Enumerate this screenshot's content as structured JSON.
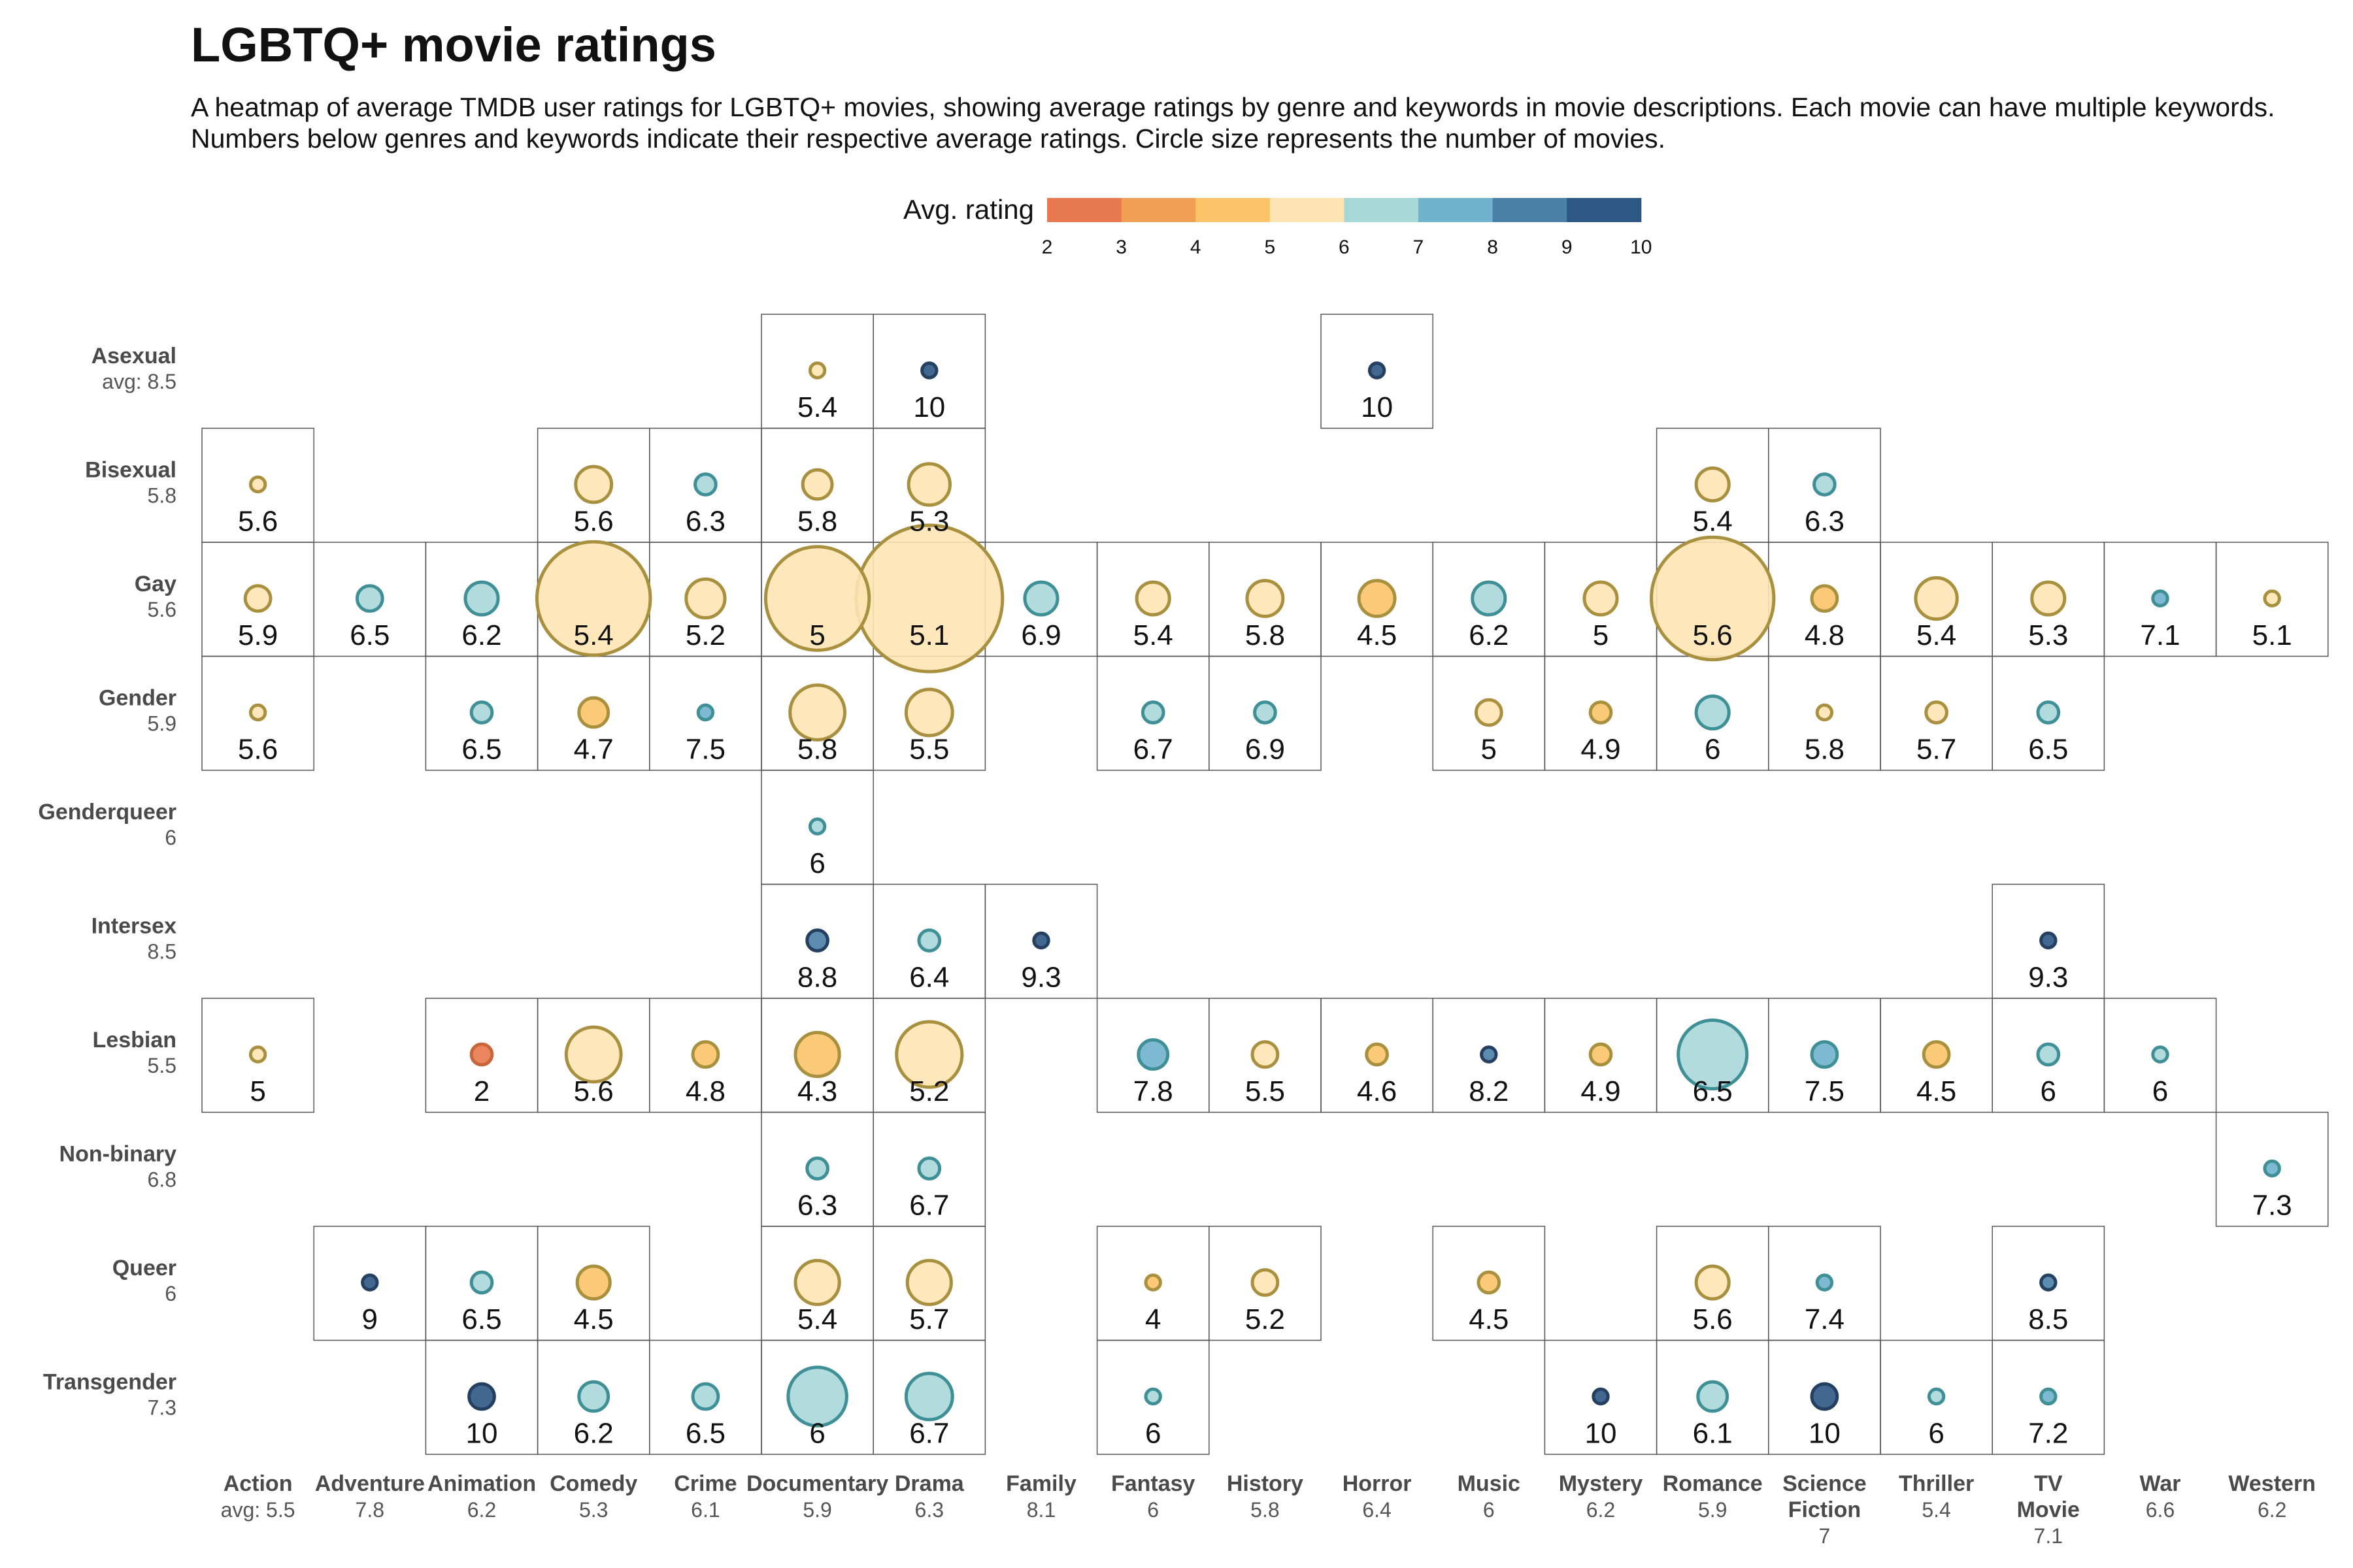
{
  "chart_data": {
    "type": "heatmap",
    "title": "LGBTQ+ movie ratings",
    "subtitle": "A heatmap of average TMDB user ratings for LGBTQ+ movies, showing average ratings by genre and keywords in movie descriptions. Each movie can have multiple keywords. Numbers below genres and keywords indicate their respective average ratings. Circle size represents the number of movies.",
    "legend": {
      "title": "Avg. rating",
      "ticks": [
        "2",
        "3",
        "4",
        "5",
        "6",
        "7",
        "8",
        "9",
        "10"
      ],
      "colors": [
        "#e8784e",
        "#f29f56",
        "#fbc469",
        "#fde4b4",
        "#a8d7d8",
        "#6fb3cc",
        "#4a80a6",
        "#2d5784"
      ],
      "placement": "top-center"
    },
    "genres": [
      {
        "name": "Action",
        "avg": "avg: 5.5"
      },
      {
        "name": "Adventure",
        "avg": "7.8"
      },
      {
        "name": "Animation",
        "avg": "6.2"
      },
      {
        "name": "Comedy",
        "avg": "5.3"
      },
      {
        "name": "Crime",
        "avg": "6.1"
      },
      {
        "name": "Documentary",
        "avg": "5.9"
      },
      {
        "name": "Drama",
        "avg": "6.3"
      },
      {
        "name": "Family",
        "avg": "8.1"
      },
      {
        "name": "Fantasy",
        "avg": "6"
      },
      {
        "name": "History",
        "avg": "5.8"
      },
      {
        "name": "Horror",
        "avg": "6.4"
      },
      {
        "name": "Music",
        "avg": "6"
      },
      {
        "name": "Mystery",
        "avg": "6.2"
      },
      {
        "name": "Romance",
        "avg": "5.9"
      },
      {
        "name": "Science Fiction",
        "avg": "7"
      },
      {
        "name": "Thriller",
        "avg": "5.4"
      },
      {
        "name": "TV Movie",
        "avg": "7.1"
      },
      {
        "name": "War",
        "avg": "6.6"
      },
      {
        "name": "Western",
        "avg": "6.2"
      }
    ],
    "keywords": [
      {
        "name": "Asexual",
        "avg": "avg: 8.5"
      },
      {
        "name": "Bisexual",
        "avg": "5.8"
      },
      {
        "name": "Gay",
        "avg": "5.6"
      },
      {
        "name": "Gender",
        "avg": "5.9"
      },
      {
        "name": "Genderqueer",
        "avg": "6"
      },
      {
        "name": "Intersex",
        "avg": "8.5"
      },
      {
        "name": "Lesbian",
        "avg": "5.5"
      },
      {
        "name": "Non-binary",
        "avg": "6.8"
      },
      {
        "name": "Queer",
        "avg": "6"
      },
      {
        "name": "Transgender",
        "avg": "7.3"
      }
    ],
    "cells": [
      {
        "keyword": "Asexual",
        "genre": "Documentary",
        "rating": "5.4",
        "count": 1
      },
      {
        "keyword": "Asexual",
        "genre": "Drama",
        "rating": "10",
        "count": 1
      },
      {
        "keyword": "Asexual",
        "genre": "Horror",
        "rating": "10",
        "count": 1
      },
      {
        "keyword": "Bisexual",
        "genre": "Action",
        "rating": "5.6",
        "count": 1
      },
      {
        "keyword": "Bisexual",
        "genre": "Comedy",
        "rating": "5.6",
        "count": 6
      },
      {
        "keyword": "Bisexual",
        "genre": "Crime",
        "rating": "6.3",
        "count": 2
      },
      {
        "keyword": "Bisexual",
        "genre": "Documentary",
        "rating": "5.8",
        "count": 4
      },
      {
        "keyword": "Bisexual",
        "genre": "Drama",
        "rating": "5.3",
        "count": 8
      },
      {
        "keyword": "Bisexual",
        "genre": "Romance",
        "rating": "5.4",
        "count": 5
      },
      {
        "keyword": "Bisexual",
        "genre": "Science Fiction",
        "rating": "6.3",
        "count": 2
      },
      {
        "keyword": "Gay",
        "genre": "Action",
        "rating": "5.9",
        "count": 3
      },
      {
        "keyword": "Gay",
        "genre": "Adventure",
        "rating": "6.5",
        "count": 3
      },
      {
        "keyword": "Gay",
        "genre": "Animation",
        "rating": "6.2",
        "count": 5
      },
      {
        "keyword": "Gay",
        "genre": "Comedy",
        "rating": "5.4",
        "count": 60
      },
      {
        "keyword": "Gay",
        "genre": "Crime",
        "rating": "5.2",
        "count": 7
      },
      {
        "keyword": "Gay",
        "genre": "Documentary",
        "rating": "5",
        "count": 50
      },
      {
        "keyword": "Gay",
        "genre": "Drama",
        "rating": "5.1",
        "count": 100
      },
      {
        "keyword": "Gay",
        "genre": "Family",
        "rating": "6.9",
        "count": 5
      },
      {
        "keyword": "Gay",
        "genre": "Fantasy",
        "rating": "5.4",
        "count": 5
      },
      {
        "keyword": "Gay",
        "genre": "History",
        "rating": "5.8",
        "count": 6
      },
      {
        "keyword": "Gay",
        "genre": "Horror",
        "rating": "4.5",
        "count": 6
      },
      {
        "keyword": "Gay",
        "genre": "Music",
        "rating": "6.2",
        "count": 5
      },
      {
        "keyword": "Gay",
        "genre": "Mystery",
        "rating": "5",
        "count": 5
      },
      {
        "keyword": "Gay",
        "genre": "Romance",
        "rating": "5.6",
        "count": 70
      },
      {
        "keyword": "Gay",
        "genre": "Science Fiction",
        "rating": "4.8",
        "count": 3
      },
      {
        "keyword": "Gay",
        "genre": "Thriller",
        "rating": "5.4",
        "count": 8
      },
      {
        "keyword": "Gay",
        "genre": "TV Movie",
        "rating": "5.3",
        "count": 5
      },
      {
        "keyword": "Gay",
        "genre": "War",
        "rating": "7.1",
        "count": 1
      },
      {
        "keyword": "Gay",
        "genre": "Western",
        "rating": "5.1",
        "count": 1
      },
      {
        "keyword": "Gender",
        "genre": "Action",
        "rating": "5.6",
        "count": 1
      },
      {
        "keyword": "Gender",
        "genre": "Animation",
        "rating": "6.5",
        "count": 2
      },
      {
        "keyword": "Gender",
        "genre": "Comedy",
        "rating": "4.7",
        "count": 4
      },
      {
        "keyword": "Gender",
        "genre": "Crime",
        "rating": "7.5",
        "count": 1
      },
      {
        "keyword": "Gender",
        "genre": "Documentary",
        "rating": "5.8",
        "count": 14
      },
      {
        "keyword": "Gender",
        "genre": "Drama",
        "rating": "5.5",
        "count": 10
      },
      {
        "keyword": "Gender",
        "genre": "Fantasy",
        "rating": "6.7",
        "count": 2
      },
      {
        "keyword": "Gender",
        "genre": "History",
        "rating": "6.9",
        "count": 2
      },
      {
        "keyword": "Gender",
        "genre": "Music",
        "rating": "5",
        "count": 3
      },
      {
        "keyword": "Gender",
        "genre": "Mystery",
        "rating": "4.9",
        "count": 2
      },
      {
        "keyword": "Gender",
        "genre": "Romance",
        "rating": "6",
        "count": 5
      },
      {
        "keyword": "Gender",
        "genre": "Science Fiction",
        "rating": "5.8",
        "count": 1
      },
      {
        "keyword": "Gender",
        "genre": "Thriller",
        "rating": "5.7",
        "count": 2
      },
      {
        "keyword": "Gender",
        "genre": "TV Movie",
        "rating": "6.5",
        "count": 2
      },
      {
        "keyword": "Genderqueer",
        "genre": "Documentary",
        "rating": "6",
        "count": 1
      },
      {
        "keyword": "Intersex",
        "genre": "Documentary",
        "rating": "8.8",
        "count": 2
      },
      {
        "keyword": "Intersex",
        "genre": "Drama",
        "rating": "6.4",
        "count": 2
      },
      {
        "keyword": "Intersex",
        "genre": "Family",
        "rating": "9.3",
        "count": 1
      },
      {
        "keyword": "Intersex",
        "genre": "TV Movie",
        "rating": "9.3",
        "count": 1
      },
      {
        "keyword": "Lesbian",
        "genre": "Action",
        "rating": "5",
        "count": 1
      },
      {
        "keyword": "Lesbian",
        "genre": "Animation",
        "rating": "2",
        "count": 2
      },
      {
        "keyword": "Lesbian",
        "genre": "Comedy",
        "rating": "5.6",
        "count": 14
      },
      {
        "keyword": "Lesbian",
        "genre": "Crime",
        "rating": "4.8",
        "count": 3
      },
      {
        "keyword": "Lesbian",
        "genre": "Documentary",
        "rating": "4.3",
        "count": 9
      },
      {
        "keyword": "Lesbian",
        "genre": "Drama",
        "rating": "5.2",
        "count": 20
      },
      {
        "keyword": "Lesbian",
        "genre": "Fantasy",
        "rating": "7.8",
        "count": 4
      },
      {
        "keyword": "Lesbian",
        "genre": "History",
        "rating": "5.5",
        "count": 3
      },
      {
        "keyword": "Lesbian",
        "genre": "Horror",
        "rating": "4.6",
        "count": 2
      },
      {
        "keyword": "Lesbian",
        "genre": "Music",
        "rating": "8.2",
        "count": 1
      },
      {
        "keyword": "Lesbian",
        "genre": "Mystery",
        "rating": "4.9",
        "count": 2
      },
      {
        "keyword": "Lesbian",
        "genre": "Romance",
        "rating": "6.5",
        "count": 22
      },
      {
        "keyword": "Lesbian",
        "genre": "Science Fiction",
        "rating": "7.5",
        "count": 3
      },
      {
        "keyword": "Lesbian",
        "genre": "Thriller",
        "rating": "4.5",
        "count": 3
      },
      {
        "keyword": "Lesbian",
        "genre": "TV Movie",
        "rating": "6",
        "count": 2
      },
      {
        "keyword": "Lesbian",
        "genre": "War",
        "rating": "6",
        "count": 1
      },
      {
        "keyword": "Non-binary",
        "genre": "Documentary",
        "rating": "6.3",
        "count": 2
      },
      {
        "keyword": "Non-binary",
        "genre": "Drama",
        "rating": "6.7",
        "count": 2
      },
      {
        "keyword": "Non-binary",
        "genre": "Western",
        "rating": "7.3",
        "count": 1
      },
      {
        "keyword": "Queer",
        "genre": "Adventure",
        "rating": "9",
        "count": 1
      },
      {
        "keyword": "Queer",
        "genre": "Animation",
        "rating": "6.5",
        "count": 2
      },
      {
        "keyword": "Queer",
        "genre": "Comedy",
        "rating": "4.5",
        "count": 5
      },
      {
        "keyword": "Queer",
        "genre": "Documentary",
        "rating": "5.4",
        "count": 9
      },
      {
        "keyword": "Queer",
        "genre": "Drama",
        "rating": "5.7",
        "count": 9
      },
      {
        "keyword": "Queer",
        "genre": "Fantasy",
        "rating": "4",
        "count": 1
      },
      {
        "keyword": "Queer",
        "genre": "History",
        "rating": "5.2",
        "count": 3
      },
      {
        "keyword": "Queer",
        "genre": "Music",
        "rating": "4.5",
        "count": 2
      },
      {
        "keyword": "Queer",
        "genre": "Romance",
        "rating": "5.6",
        "count": 5
      },
      {
        "keyword": "Queer",
        "genre": "Science Fiction",
        "rating": "7.4",
        "count": 1
      },
      {
        "keyword": "Queer",
        "genre": "TV Movie",
        "rating": "8.5",
        "count": 1
      },
      {
        "keyword": "Transgender",
        "genre": "Animation",
        "rating": "10",
        "count": 3
      },
      {
        "keyword": "Transgender",
        "genre": "Comedy",
        "rating": "6.2",
        "count": 4
      },
      {
        "keyword": "Transgender",
        "genre": "Crime",
        "rating": "6.5",
        "count": 3
      },
      {
        "keyword": "Transgender",
        "genre": "Documentary",
        "rating": "6",
        "count": 16
      },
      {
        "keyword": "Transgender",
        "genre": "Drama",
        "rating": "6.7",
        "count": 10
      },
      {
        "keyword": "Transgender",
        "genre": "Fantasy",
        "rating": "6",
        "count": 1
      },
      {
        "keyword": "Transgender",
        "genre": "Mystery",
        "rating": "10",
        "count": 1
      },
      {
        "keyword": "Transgender",
        "genre": "Romance",
        "rating": "6.1",
        "count": 4
      },
      {
        "keyword": "Transgender",
        "genre": "Science Fiction",
        "rating": "10",
        "count": 3
      },
      {
        "keyword": "Transgender",
        "genre": "Thriller",
        "rating": "6",
        "count": 1
      },
      {
        "keyword": "Transgender",
        "genre": "TV Movie",
        "rating": "7.2",
        "count": 1
      }
    ]
  }
}
